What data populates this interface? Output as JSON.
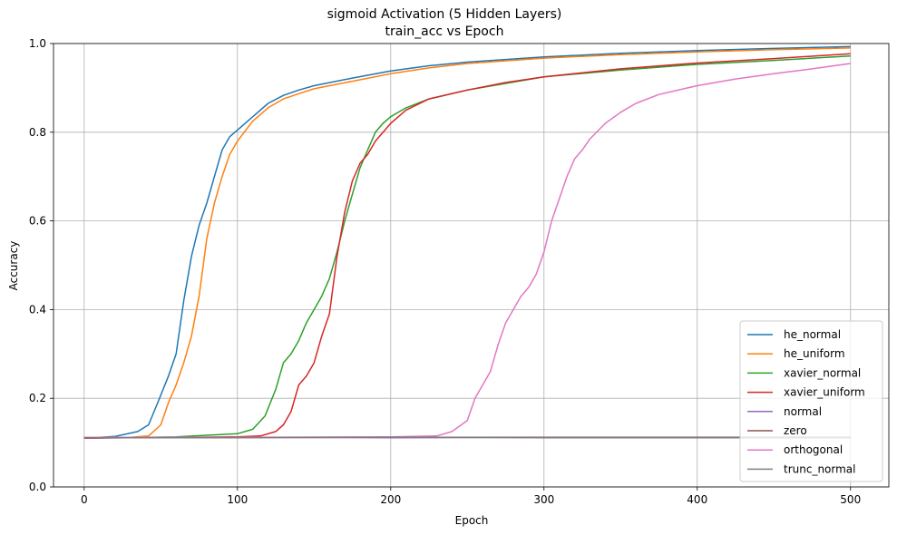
{
  "chart_data": {
    "type": "line",
    "title": "sigmoid Activation (5 Hidden Layers)",
    "subtitle": "train_acc vs Epoch",
    "xlabel": "Epoch",
    "ylabel": "Accuracy",
    "xlim": [
      -20,
      525
    ],
    "ylim": [
      0,
      1
    ],
    "xticks": [
      0,
      100,
      200,
      300,
      400,
      500
    ],
    "yticks": [
      0.0,
      0.2,
      0.4,
      0.6,
      0.8,
      1.0
    ],
    "xtick_labels": [
      "0",
      "100",
      "200",
      "300",
      "400",
      "500"
    ],
    "ytick_labels": [
      "0.0",
      "0.2",
      "0.4",
      "0.6",
      "0.8",
      "1.0"
    ],
    "grid": true,
    "legend_position": "bottom-right",
    "series": [
      {
        "name": "he_normal",
        "color": "#1f77b4",
        "points": [
          [
            0,
            0.11
          ],
          [
            20,
            0.114
          ],
          [
            35,
            0.125
          ],
          [
            42,
            0.14
          ],
          [
            48,
            0.19
          ],
          [
            55,
            0.25
          ],
          [
            60,
            0.3
          ],
          [
            65,
            0.42
          ],
          [
            70,
            0.52
          ],
          [
            75,
            0.59
          ],
          [
            80,
            0.64
          ],
          [
            85,
            0.7
          ],
          [
            90,
            0.76
          ],
          [
            95,
            0.79
          ],
          [
            100,
            0.805
          ],
          [
            110,
            0.835
          ],
          [
            120,
            0.865
          ],
          [
            130,
            0.883
          ],
          [
            140,
            0.895
          ],
          [
            150,
            0.905
          ],
          [
            175,
            0.922
          ],
          [
            200,
            0.938
          ],
          [
            225,
            0.95
          ],
          [
            250,
            0.958
          ],
          [
            300,
            0.97
          ],
          [
            350,
            0.978
          ],
          [
            400,
            0.984
          ],
          [
            450,
            0.989
          ],
          [
            500,
            0.993
          ]
        ]
      },
      {
        "name": "he_uniform",
        "color": "#ff7f0e",
        "points": [
          [
            0,
            0.11
          ],
          [
            30,
            0.112
          ],
          [
            42,
            0.115
          ],
          [
            50,
            0.14
          ],
          [
            55,
            0.19
          ],
          [
            60,
            0.23
          ],
          [
            65,
            0.28
          ],
          [
            70,
            0.34
          ],
          [
            75,
            0.43
          ],
          [
            80,
            0.56
          ],
          [
            85,
            0.64
          ],
          [
            90,
            0.7
          ],
          [
            95,
            0.75
          ],
          [
            100,
            0.78
          ],
          [
            110,
            0.825
          ],
          [
            120,
            0.855
          ],
          [
            130,
            0.875
          ],
          [
            140,
            0.887
          ],
          [
            150,
            0.898
          ],
          [
            175,
            0.915
          ],
          [
            200,
            0.932
          ],
          [
            225,
            0.945
          ],
          [
            250,
            0.955
          ],
          [
            300,
            0.967
          ],
          [
            350,
            0.975
          ],
          [
            400,
            0.981
          ],
          [
            450,
            0.986
          ],
          [
            500,
            0.99
          ]
        ]
      },
      {
        "name": "xavier_normal",
        "color": "#2ca02c",
        "points": [
          [
            0,
            0.11
          ],
          [
            60,
            0.113
          ],
          [
            100,
            0.12
          ],
          [
            110,
            0.13
          ],
          [
            118,
            0.16
          ],
          [
            125,
            0.22
          ],
          [
            130,
            0.28
          ],
          [
            135,
            0.3
          ],
          [
            140,
            0.33
          ],
          [
            145,
            0.37
          ],
          [
            150,
            0.4
          ],
          [
            155,
            0.43
          ],
          [
            160,
            0.47
          ],
          [
            165,
            0.53
          ],
          [
            170,
            0.6
          ],
          [
            175,
            0.66
          ],
          [
            180,
            0.72
          ],
          [
            185,
            0.76
          ],
          [
            190,
            0.8
          ],
          [
            195,
            0.82
          ],
          [
            200,
            0.835
          ],
          [
            210,
            0.855
          ],
          [
            225,
            0.875
          ],
          [
            250,
            0.895
          ],
          [
            275,
            0.91
          ],
          [
            300,
            0.925
          ],
          [
            350,
            0.94
          ],
          [
            400,
            0.953
          ],
          [
            450,
            0.962
          ],
          [
            500,
            0.972
          ]
        ]
      },
      {
        "name": "xavier_uniform",
        "color": "#d62728",
        "points": [
          [
            0,
            0.11
          ],
          [
            100,
            0.113
          ],
          [
            115,
            0.115
          ],
          [
            125,
            0.125
          ],
          [
            130,
            0.14
          ],
          [
            135,
            0.17
          ],
          [
            140,
            0.23
          ],
          [
            145,
            0.25
          ],
          [
            150,
            0.28
          ],
          [
            155,
            0.34
          ],
          [
            160,
            0.39
          ],
          [
            165,
            0.52
          ],
          [
            170,
            0.62
          ],
          [
            175,
            0.69
          ],
          [
            180,
            0.73
          ],
          [
            185,
            0.75
          ],
          [
            190,
            0.78
          ],
          [
            200,
            0.82
          ],
          [
            210,
            0.85
          ],
          [
            225,
            0.875
          ],
          [
            250,
            0.895
          ],
          [
            275,
            0.912
          ],
          [
            300,
            0.925
          ],
          [
            350,
            0.943
          ],
          [
            400,
            0.956
          ],
          [
            450,
            0.966
          ],
          [
            500,
            0.977
          ]
        ]
      },
      {
        "name": "normal",
        "color": "#9467bd",
        "points": [
          [
            0,
            0.112
          ],
          [
            100,
            0.112
          ],
          [
            200,
            0.111
          ],
          [
            300,
            0.112
          ],
          [
            400,
            0.112
          ],
          [
            500,
            0.112
          ]
        ]
      },
      {
        "name": "zero",
        "color": "#8c564b",
        "points": [
          [
            0,
            0.112
          ],
          [
            100,
            0.112
          ],
          [
            200,
            0.112
          ],
          [
            300,
            0.112
          ],
          [
            400,
            0.112
          ],
          [
            500,
            0.112
          ]
        ]
      },
      {
        "name": "orthogonal",
        "color": "#e377c2",
        "points": [
          [
            0,
            0.112
          ],
          [
            100,
            0.112
          ],
          [
            200,
            0.113
          ],
          [
            230,
            0.115
          ],
          [
            240,
            0.125
          ],
          [
            250,
            0.15
          ],
          [
            255,
            0.2
          ],
          [
            260,
            0.23
          ],
          [
            265,
            0.26
          ],
          [
            270,
            0.32
          ],
          [
            275,
            0.37
          ],
          [
            280,
            0.4
          ],
          [
            285,
            0.43
          ],
          [
            290,
            0.45
          ],
          [
            295,
            0.48
          ],
          [
            300,
            0.53
          ],
          [
            305,
            0.6
          ],
          [
            310,
            0.65
          ],
          [
            315,
            0.7
          ],
          [
            320,
            0.74
          ],
          [
            325,
            0.76
          ],
          [
            330,
            0.785
          ],
          [
            340,
            0.82
          ],
          [
            350,
            0.845
          ],
          [
            360,
            0.865
          ],
          [
            375,
            0.885
          ],
          [
            400,
            0.905
          ],
          [
            425,
            0.92
          ],
          [
            450,
            0.932
          ],
          [
            475,
            0.943
          ],
          [
            500,
            0.955
          ]
        ]
      },
      {
        "name": "trunc_normal",
        "color": "#7f7f7f",
        "points": [
          [
            0,
            0.111
          ],
          [
            100,
            0.111
          ],
          [
            200,
            0.112
          ],
          [
            300,
            0.111
          ],
          [
            400,
            0.111
          ],
          [
            500,
            0.111
          ]
        ]
      }
    ]
  }
}
